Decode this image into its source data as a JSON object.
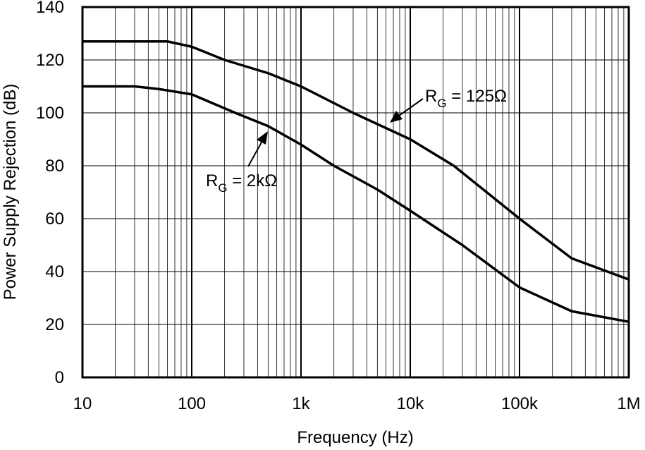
{
  "chart_data": {
    "type": "line",
    "xlabel": "Frequency (Hz)",
    "ylabel": "Power Supply Rejection (dB)",
    "xscale": "log",
    "xlim": [
      10,
      1000000
    ],
    "xticks": [
      {
        "value": 10,
        "label": "10"
      },
      {
        "value": 100,
        "label": "100"
      },
      {
        "value": 1000,
        "label": "1k"
      },
      {
        "value": 10000,
        "label": "10k"
      },
      {
        "value": 100000,
        "label": "100k"
      },
      {
        "value": 1000000,
        "label": "1M"
      }
    ],
    "ylim": [
      0,
      140
    ],
    "yticks": [
      0,
      20,
      40,
      60,
      80,
      100,
      120,
      140
    ],
    "grid": true,
    "series": [
      {
        "label": [
          "R",
          "G",
          " = 125Ω"
        ],
        "color": "#000000",
        "x": [
          10,
          30,
          60,
          100,
          200,
          500,
          1000,
          3000,
          10000,
          25000,
          50000,
          100000,
          300000,
          1000000
        ],
        "values": [
          127,
          127,
          127,
          125,
          120,
          115,
          110,
          100,
          90,
          80,
          70,
          60,
          45,
          37
        ]
      },
      {
        "label": [
          "R",
          "G",
          " = 2kΩ"
        ],
        "color": "#000000",
        "x": [
          10,
          30,
          50,
          100,
          250,
          500,
          1000,
          2000,
          5000,
          10000,
          30000,
          100000,
          300000,
          1000000
        ],
        "values": [
          110,
          110,
          109,
          107,
          100,
          95,
          88,
          80,
          71,
          63,
          50,
          34,
          25,
          21
        ]
      }
    ]
  }
}
